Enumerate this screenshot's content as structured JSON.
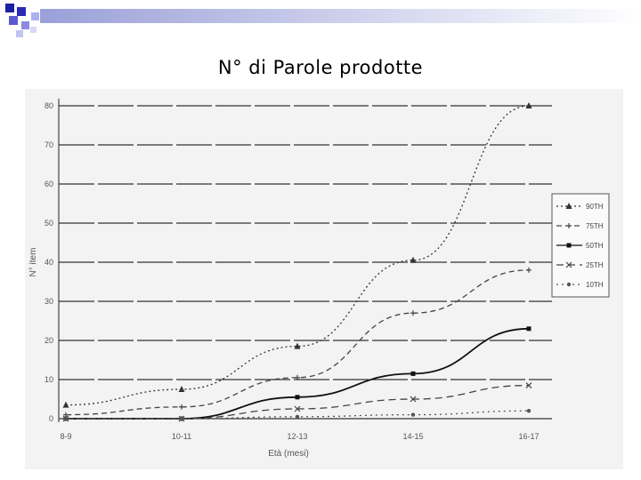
{
  "slide": {
    "title": "N° di Parole prodotte"
  },
  "chart_data": {
    "type": "line",
    "categories": [
      "8-9",
      "10-11",
      "12-13",
      "14-15",
      "16-17"
    ],
    "xlabel": "Età (mesi)",
    "ylabel": "N° item",
    "ylim": [
      0,
      80
    ],
    "yticks": [
      0,
      10,
      20,
      30,
      40,
      50,
      60,
      70,
      80
    ],
    "grid": true,
    "legend_position": "right",
    "series": [
      {
        "name": "90TH",
        "values": [
          3.5,
          7.5,
          18.5,
          40.5,
          80
        ],
        "color": "#333333",
        "dash": "2,3",
        "marker": "triangle"
      },
      {
        "name": "75TH",
        "values": [
          1,
          3,
          10.5,
          27,
          38
        ],
        "color": "#444444",
        "dash": "6,4",
        "marker": "plus"
      },
      {
        "name": "50TH",
        "values": [
          0,
          0,
          5.5,
          11.5,
          23
        ],
        "color": "#111111",
        "dash": "",
        "marker": "square"
      },
      {
        "name": "25TH",
        "values": [
          0,
          0,
          2.5,
          5,
          8.5
        ],
        "color": "#444444",
        "dash": "8,5",
        "marker": "x"
      },
      {
        "name": "10TH",
        "values": [
          0,
          0,
          0.5,
          1,
          2
        ],
        "color": "#555555",
        "dash": "2,4",
        "marker": "dot"
      }
    ]
  }
}
